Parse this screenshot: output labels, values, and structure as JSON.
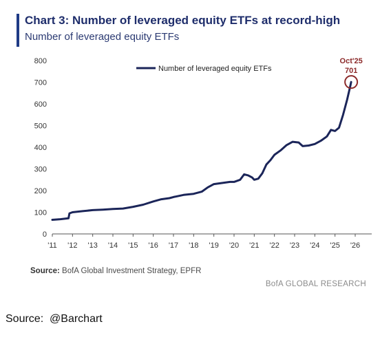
{
  "header": {
    "title": "Chart 3: Number of leveraged equity ETFs at record-high",
    "subtitle": "Number of leveraged equity ETFs"
  },
  "source": {
    "label": "Source:",
    "text": " BofA Global Investment Strategy, EPFR"
  },
  "brand": "BofA GLOBAL RESEARCH",
  "outer_source": "Source:  @Barchart",
  "colors": {
    "line": "#1b2559",
    "accent": "#1f3b86",
    "annotation": "#8c2a2a"
  },
  "chart_data": {
    "type": "line",
    "title": "Chart 3: Number of leveraged equity ETFs at record-high",
    "subtitle": "Number of leveraged equity ETFs",
    "xlim": [
      2011,
      2026
    ],
    "ylim": [
      0,
      800
    ],
    "x_ticks": [
      2011,
      2012,
      2013,
      2014,
      2015,
      2016,
      2017,
      2018,
      2019,
      2020,
      2021,
      2022,
      2023,
      2024,
      2025,
      2026
    ],
    "x_tick_labels": [
      "'11",
      "'12",
      "'13",
      "'14",
      "'15",
      "'16",
      "'17",
      "'18",
      "'19",
      "'20",
      "'21",
      "'22",
      "'23",
      "'24",
      "'25",
      "'26"
    ],
    "y_ticks": [
      0,
      100,
      200,
      300,
      400,
      500,
      600,
      700,
      800
    ],
    "y_tick_labels": [
      "0",
      "100",
      "200",
      "300",
      "400",
      "500",
      "600",
      "700",
      "800"
    ],
    "grid": false,
    "legend_position": "top-center",
    "series": [
      {
        "name": "Number of leveraged equity ETFs",
        "color": "#1b2559",
        "points": [
          [
            2011.0,
            65
          ],
          [
            2011.4,
            68
          ],
          [
            2011.8,
            72
          ],
          [
            2011.85,
            95
          ],
          [
            2012.0,
            100
          ],
          [
            2012.5,
            105
          ],
          [
            2013.0,
            110
          ],
          [
            2013.5,
            112
          ],
          [
            2014.0,
            115
          ],
          [
            2014.5,
            117
          ],
          [
            2015.0,
            125
          ],
          [
            2015.5,
            135
          ],
          [
            2016.0,
            150
          ],
          [
            2016.4,
            160
          ],
          [
            2016.8,
            165
          ],
          [
            2017.0,
            170
          ],
          [
            2017.5,
            180
          ],
          [
            2018.0,
            185
          ],
          [
            2018.4,
            195
          ],
          [
            2018.7,
            215
          ],
          [
            2019.0,
            230
          ],
          [
            2019.4,
            235
          ],
          [
            2019.8,
            240
          ],
          [
            2020.0,
            240
          ],
          [
            2020.3,
            250
          ],
          [
            2020.5,
            275
          ],
          [
            2020.7,
            270
          ],
          [
            2020.9,
            260
          ],
          [
            2021.0,
            250
          ],
          [
            2021.2,
            255
          ],
          [
            2021.4,
            280
          ],
          [
            2021.6,
            320
          ],
          [
            2021.8,
            340
          ],
          [
            2022.0,
            365
          ],
          [
            2022.3,
            385
          ],
          [
            2022.6,
            410
          ],
          [
            2022.9,
            425
          ],
          [
            2023.2,
            422
          ],
          [
            2023.4,
            405
          ],
          [
            2023.7,
            408
          ],
          [
            2024.0,
            415
          ],
          [
            2024.3,
            430
          ],
          [
            2024.6,
            450
          ],
          [
            2024.8,
            480
          ],
          [
            2025.0,
            475
          ],
          [
            2025.2,
            490
          ],
          [
            2025.4,
            550
          ],
          [
            2025.6,
            620
          ],
          [
            2025.75,
            680
          ],
          [
            2025.8,
            701
          ]
        ]
      }
    ],
    "annotations": [
      {
        "label": "Oct'25",
        "value_label": "701",
        "x": 2025.8,
        "y": 701
      }
    ]
  }
}
